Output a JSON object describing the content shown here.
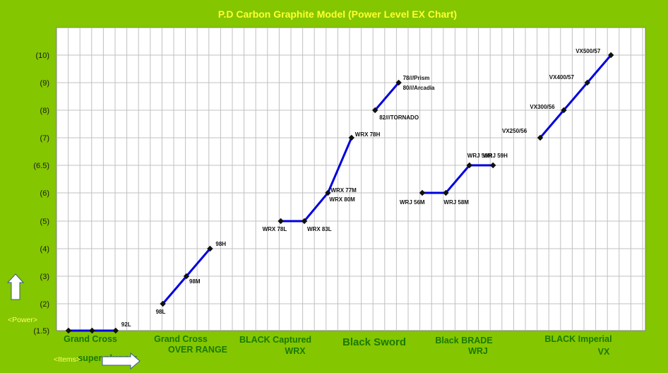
{
  "chart_data": {
    "type": "line",
    "title": "P.D Carbon Graphite Model  (Power Level EX Chart)",
    "ylabel": "<Power>",
    "xlabel": "<Items>",
    "y_tick_labels": [
      "(1.5)",
      "(2)",
      "(3)",
      "(4)",
      "(5)",
      "(6)",
      "(6.5)",
      "(7)",
      "(8)",
      "(9)",
      "(10)"
    ],
    "grid": true,
    "line_color": "#0000dd",
    "groups": [
      {
        "name": [
          "Grand Cross",
          "super plugger"
        ],
        "points": [
          {
            "label": "",
            "level": "(1.5)"
          },
          {
            "label": "",
            "level": "(1.5)"
          },
          {
            "label": "92L",
            "level": "(1.5)"
          }
        ]
      },
      {
        "name": [
          "Grand Cross",
          "OVER RANGE"
        ],
        "points": [
          {
            "label": "98L",
            "level": "(2)"
          },
          {
            "label": "98M",
            "level": "(3)"
          },
          {
            "label": "98H",
            "level": "(4)"
          }
        ]
      },
      {
        "name": [
          "BLACK Captured",
          "WRX"
        ],
        "points": [
          {
            "label": "WRX 78L",
            "level": "(5)"
          },
          {
            "label": "WRX 83L",
            "level": "(5)"
          },
          {
            "label": "WRX 77M",
            "level": "(6)"
          },
          {
            "label": "WRX 78H",
            "level": "(7)"
          }
        ],
        "extra_labels": [
          "WRX 80M"
        ]
      },
      {
        "name": [
          "Black Sword"
        ],
        "points": [
          {
            "label": "82///TORNADO",
            "level": "(8)"
          },
          {
            "label": "78///Prism",
            "level": "(9)"
          }
        ],
        "extra_labels": [
          "80///Arcadia"
        ]
      },
      {
        "name": [
          "Black BRADE",
          "WRJ"
        ],
        "points": [
          {
            "label": "WRJ 56M",
            "level": "(6)"
          },
          {
            "label": "WRJ 58M",
            "level": "(6)"
          },
          {
            "label": "WRJ 56H",
            "level": "(6.5)"
          },
          {
            "label": "WRJ 59H",
            "level": "(6.5)"
          }
        ]
      },
      {
        "name": [
          "BLACK Imperial",
          "VX"
        ],
        "points": [
          {
            "label": "VX250/56",
            "level": "(7)"
          },
          {
            "label": "VX300/56",
            "level": "(8)"
          },
          {
            "label": "VX400/57",
            "level": "(9)"
          },
          {
            "label": "VX500/57",
            "level": "(10)"
          }
        ]
      }
    ]
  }
}
